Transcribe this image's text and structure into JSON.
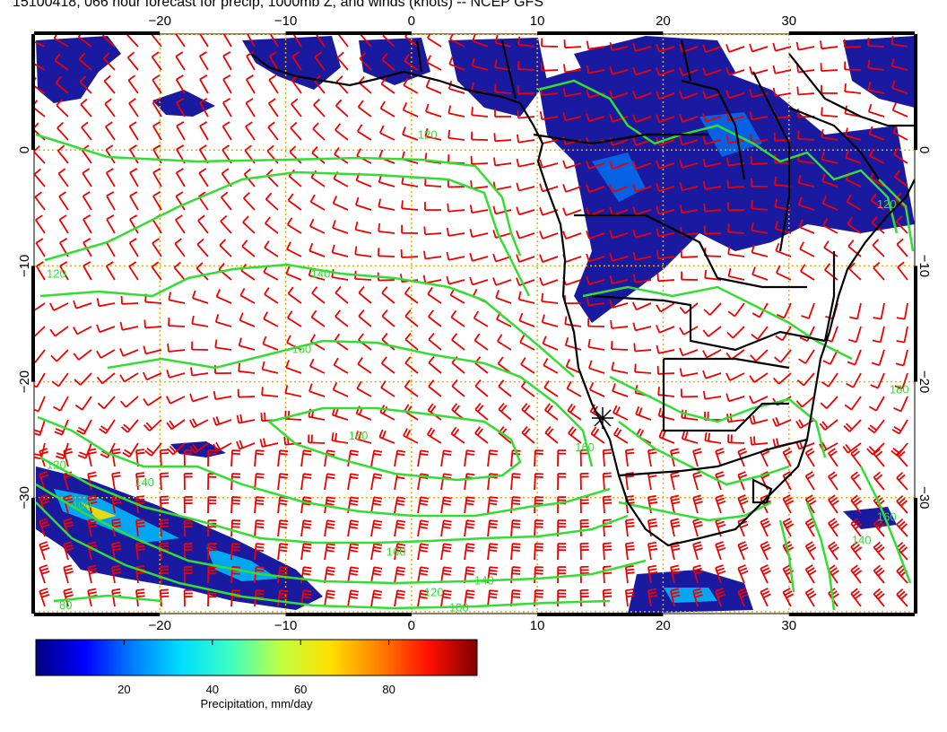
{
  "title": "15100418, 066 hour forecast for precip, 1000mb Z, and winds (knots) -- NCEP GFS",
  "map": {
    "lon_range": [
      -30,
      40
    ],
    "lat_range": [
      -40,
      10
    ],
    "lon_ticks": [
      -20,
      -10,
      0,
      10,
      20,
      30
    ],
    "lon_tick_labels": [
      "−20",
      "−10",
      "0",
      "10",
      "20",
      "30"
    ],
    "lat_ticks": [
      0,
      -10,
      -20,
      -30
    ],
    "lat_tick_labels": [
      "0",
      "−10",
      "−20",
      "−30"
    ],
    "grid": true,
    "grid_color": "#e8b000",
    "contour_color": "#33dd33",
    "barb_color": "#ee0000",
    "precip_color": "#1a1aa0",
    "contour_labels": [
      {
        "text": "120",
        "lon": 0.5,
        "lat": 1.0
      },
      {
        "text": "120",
        "lon": -29,
        "lat": -11
      },
      {
        "text": "140",
        "lon": -8,
        "lat": -11
      },
      {
        "text": "160",
        "lon": -9.5,
        "lat": -17.5
      },
      {
        "text": "180",
        "lon": -5,
        "lat": -25
      },
      {
        "text": "160",
        "lon": 13,
        "lat": -26
      },
      {
        "text": "140",
        "lon": -22,
        "lat": -29
      },
      {
        "text": "120",
        "lon": -29,
        "lat": -27.5
      },
      {
        "text": "100",
        "lon": -27,
        "lat": -31
      },
      {
        "text": "160",
        "lon": -2,
        "lat": -35
      },
      {
        "text": "140",
        "lon": 5,
        "lat": -37.5
      },
      {
        "text": "120",
        "lon": 1,
        "lat": -38.5
      },
      {
        "text": "100",
        "lon": 3,
        "lat": -39.8
      },
      {
        "text": "80",
        "lon": -28,
        "lat": -39.6
      },
      {
        "text": "140",
        "lon": 35,
        "lat": -34
      },
      {
        "text": "160",
        "lon": 37,
        "lat": -32
      },
      {
        "text": "180",
        "lon": 38,
        "lat": -21
      },
      {
        "text": "120",
        "lon": 37,
        "lat": -5
      }
    ]
  },
  "colorbar": {
    "label": "Precipitation, mm/day",
    "ticks": [
      20,
      40,
      60,
      80
    ],
    "tick_labels": [
      "20",
      "40",
      "60",
      "80"
    ],
    "range": [
      0,
      100
    ],
    "colors": [
      "#00007f",
      "#0000ff",
      "#0080ff",
      "#00e0ff",
      "#40ffc0",
      "#c0ff40",
      "#ffe000",
      "#ff8000",
      "#ff1000",
      "#7f0000"
    ]
  }
}
